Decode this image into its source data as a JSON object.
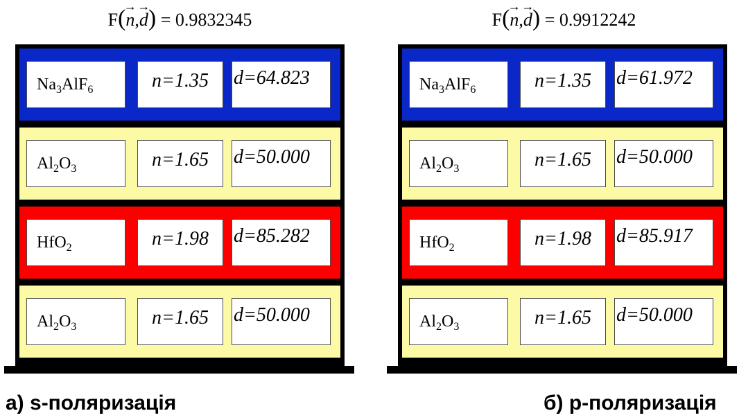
{
  "panels": [
    {
      "formula": {
        "f": "F",
        "n": "n",
        "comma": ",",
        "d": "d",
        "eq": "=",
        "value": "0.9832345"
      },
      "layers": [
        {
          "material": "Na",
          "sub1": "3",
          "mid": "AlF",
          "sub2": "6",
          "n": "n=1.35",
          "d": "d=64.823",
          "color": "#0a28c8"
        },
        {
          "material": "Al",
          "sub1": "2",
          "mid": "O",
          "sub2": "3",
          "n": "n=1.65",
          "d": "d=50.000",
          "color": "#fdfaa6"
        },
        {
          "material": "HfO",
          "sub1": "2",
          "mid": "",
          "sub2": "",
          "n": "n=1.98",
          "d": "d=85.282",
          "color": "#fc0000"
        },
        {
          "material": "Al",
          "sub1": "2",
          "mid": "O",
          "sub2": "3",
          "n": "n=1.65",
          "d": "d=50.000",
          "color": "#fdfaa6"
        }
      ],
      "caption": "а) s-поляризація"
    },
    {
      "formula": {
        "f": "F",
        "n": "n",
        "comma": ",",
        "d": "d",
        "eq": "=",
        "value": "0.9912242"
      },
      "layers": [
        {
          "material": "Na",
          "sub1": "3",
          "mid": "AlF",
          "sub2": "6",
          "n": "n=1.35",
          "d": "d=61.972",
          "color": "#0a28c8"
        },
        {
          "material": "Al",
          "sub1": "2",
          "mid": "O",
          "sub2": "3",
          "n": "n=1.65",
          "d": "d=50.000",
          "color": "#fdfaa6"
        },
        {
          "material": "HfO",
          "sub1": "2",
          "mid": "",
          "sub2": "",
          "n": "n=1.98",
          "d": "d=85.917",
          "color": "#fc0000"
        },
        {
          "material": "Al",
          "sub1": "2",
          "mid": "O",
          "sub2": "3",
          "n": "n=1.65",
          "d": "d=50.000",
          "color": "#fdfaa6"
        }
      ],
      "caption": "б) p-поляризація"
    }
  ]
}
